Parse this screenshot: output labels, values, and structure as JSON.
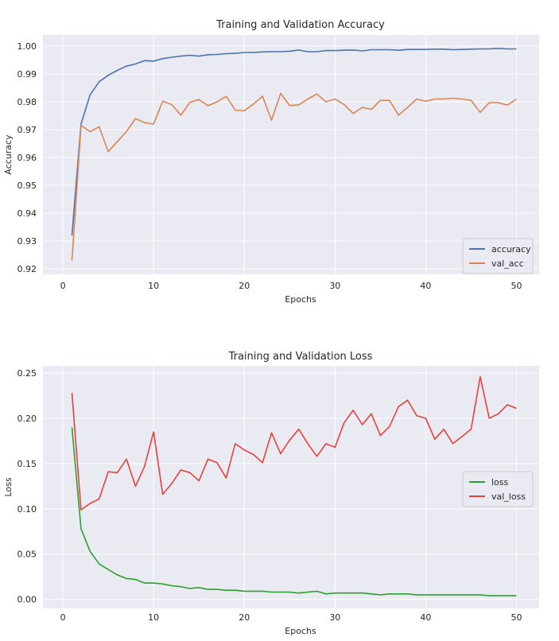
{
  "chart_data": [
    {
      "type": "line",
      "title": "Training and Validation Accuracy",
      "xlabel": "Epochs",
      "ylabel": "Accuracy",
      "xlim": [
        -2.2,
        52.5
      ],
      "ylim": [
        0.918,
        1.004
      ],
      "xticks": [
        0,
        10,
        20,
        30,
        40,
        50
      ],
      "xtick_labels": [
        "0",
        "10",
        "20",
        "30",
        "40",
        "50"
      ],
      "yticks": [
        0.92,
        0.93,
        0.94,
        0.95,
        0.96,
        0.97,
        0.98,
        0.99,
        1.0
      ],
      "ytick_labels": [
        "0.92",
        "0.93",
        "0.94",
        "0.95",
        "0.96",
        "0.97",
        "0.98",
        "0.99",
        "1.00"
      ],
      "grid": true,
      "legend_position": "lower-right",
      "x": [
        1,
        2,
        3,
        4,
        5,
        6,
        7,
        8,
        9,
        10,
        11,
        12,
        13,
        14,
        15,
        16,
        17,
        18,
        19,
        20,
        21,
        22,
        23,
        24,
        25,
        26,
        27,
        28,
        29,
        30,
        31,
        32,
        33,
        34,
        35,
        36,
        37,
        38,
        39,
        40,
        41,
        42,
        43,
        44,
        45,
        46,
        47,
        48,
        49,
        50
      ],
      "series": [
        {
          "name": "accuracy",
          "color": "#4c72b0",
          "values": [
            0.932,
            0.972,
            0.9825,
            0.9872,
            0.9895,
            0.9913,
            0.9928,
            0.9936,
            0.9948,
            0.9946,
            0.9955,
            0.996,
            0.9964,
            0.9967,
            0.9964,
            0.9969,
            0.997,
            0.9973,
            0.9974,
            0.9977,
            0.9977,
            0.9979,
            0.998,
            0.998,
            0.9982,
            0.9986,
            0.998,
            0.998,
            0.9984,
            0.9984,
            0.9985,
            0.9986,
            0.9983,
            0.9987,
            0.9987,
            0.9987,
            0.9985,
            0.9988,
            0.9988,
            0.9988,
            0.9989,
            0.9989,
            0.9987,
            0.9988,
            0.9989,
            0.999,
            0.999,
            0.9992,
            0.999,
            0.999
          ]
        },
        {
          "name": "val_acc",
          "color": "#dd8452",
          "values": [
            0.923,
            0.9715,
            0.9693,
            0.971,
            0.9621,
            0.9657,
            0.9693,
            0.974,
            0.9725,
            0.972,
            0.9802,
            0.979,
            0.9752,
            0.9798,
            0.9808,
            0.9786,
            0.98,
            0.982,
            0.977,
            0.9768,
            0.9792,
            0.982,
            0.9734,
            0.983,
            0.9787,
            0.9789,
            0.981,
            0.9828,
            0.98,
            0.981,
            0.979,
            0.9758,
            0.978,
            0.9773,
            0.9805,
            0.9805,
            0.9752,
            0.978,
            0.981,
            0.9802,
            0.981,
            0.981,
            0.9813,
            0.981,
            0.9805,
            0.9762,
            0.9797,
            0.9797,
            0.9788,
            0.981
          ]
        }
      ]
    },
    {
      "type": "line",
      "title": "Training and Validation Loss",
      "xlabel": "Epochs",
      "ylabel": "Loss",
      "xlim": [
        -2.2,
        52.5
      ],
      "ylim": [
        -0.01,
        0.258
      ],
      "xticks": [
        0,
        10,
        20,
        30,
        40,
        50
      ],
      "xtick_labels": [
        "0",
        "10",
        "20",
        "30",
        "40",
        "50"
      ],
      "yticks": [
        0.0,
        0.05,
        0.1,
        0.15,
        0.2,
        0.25
      ],
      "ytick_labels": [
        "0.00",
        "0.05",
        "0.10",
        "0.15",
        "0.20",
        "0.25"
      ],
      "grid": true,
      "legend_position": "center-right",
      "x": [
        1,
        2,
        3,
        4,
        5,
        6,
        7,
        8,
        9,
        10,
        11,
        12,
        13,
        14,
        15,
        16,
        17,
        18,
        19,
        20,
        21,
        22,
        23,
        24,
        25,
        26,
        27,
        28,
        29,
        30,
        31,
        32,
        33,
        34,
        35,
        36,
        37,
        38,
        39,
        40,
        41,
        42,
        43,
        44,
        45,
        46,
        47,
        48,
        49,
        50
      ],
      "series": [
        {
          "name": "loss",
          "color": "#2ca02c",
          "values": [
            0.19,
            0.078,
            0.053,
            0.039,
            0.033,
            0.027,
            0.023,
            0.022,
            0.018,
            0.018,
            0.017,
            0.015,
            0.014,
            0.012,
            0.013,
            0.011,
            0.011,
            0.01,
            0.01,
            0.009,
            0.009,
            0.009,
            0.008,
            0.008,
            0.008,
            0.007,
            0.008,
            0.009,
            0.006,
            0.007,
            0.007,
            0.007,
            0.007,
            0.006,
            0.005,
            0.006,
            0.006,
            0.006,
            0.005,
            0.005,
            0.005,
            0.005,
            0.005,
            0.005,
            0.005,
            0.005,
            0.004,
            0.004,
            0.004,
            0.004
          ]
        },
        {
          "name": "val_loss",
          "color": "#e8413c",
          "values": [
            0.228,
            0.099,
            0.106,
            0.111,
            0.141,
            0.14,
            0.155,
            0.125,
            0.147,
            0.185,
            0.116,
            0.128,
            0.143,
            0.14,
            0.131,
            0.155,
            0.151,
            0.134,
            0.172,
            0.165,
            0.16,
            0.151,
            0.184,
            0.161,
            0.176,
            0.188,
            0.172,
            0.158,
            0.172,
            0.168,
            0.195,
            0.209,
            0.193,
            0.205,
            0.181,
            0.191,
            0.213,
            0.22,
            0.203,
            0.2,
            0.177,
            0.188,
            0.172,
            0.18,
            0.188,
            0.246,
            0.2,
            0.205,
            0.215,
            0.211
          ]
        }
      ]
    }
  ]
}
